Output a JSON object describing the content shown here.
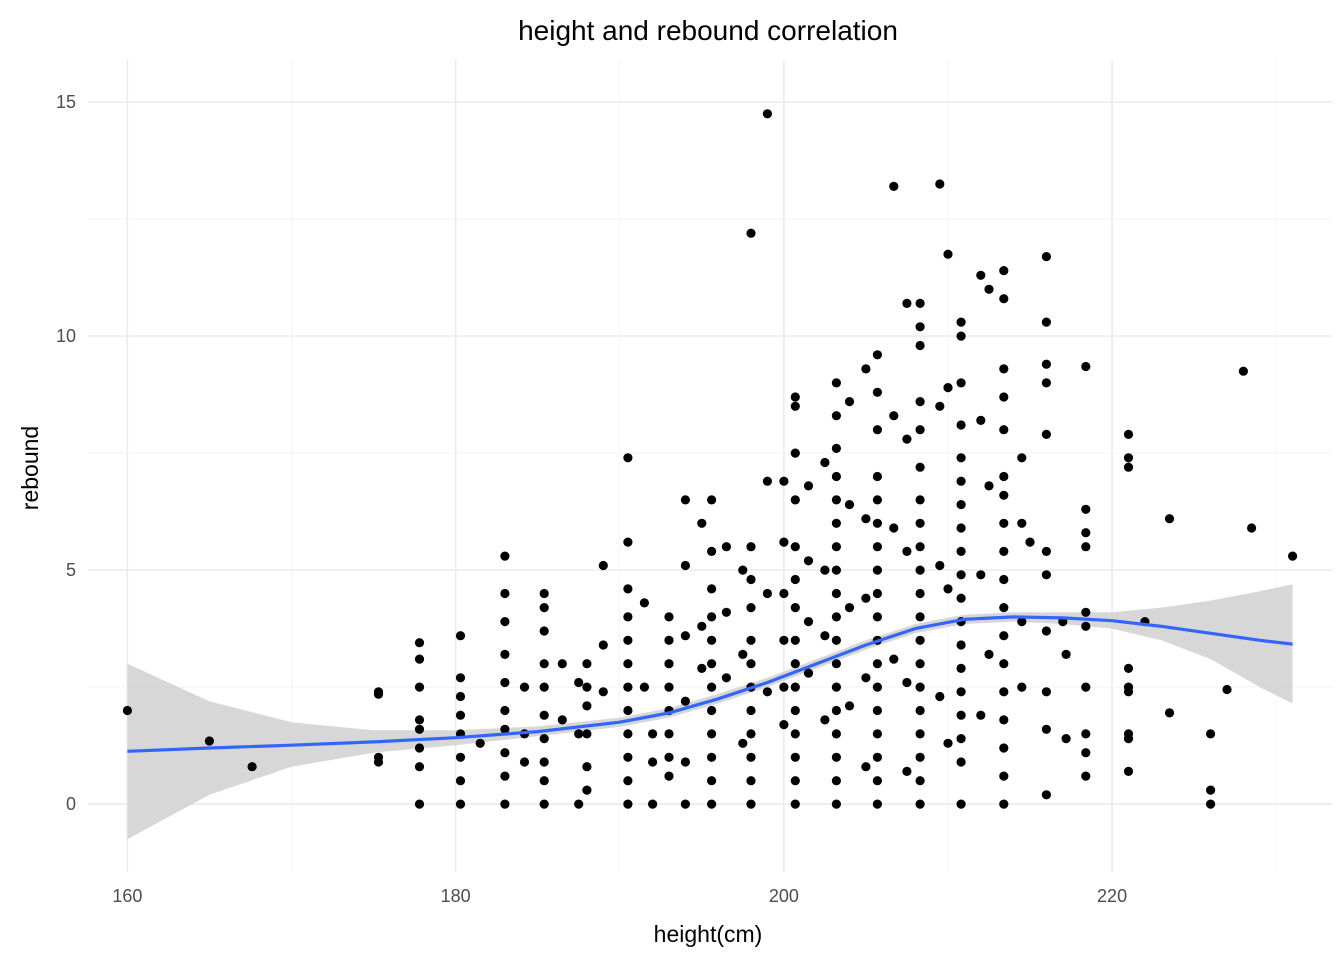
{
  "chart_data": {
    "type": "scatter",
    "title": "height and rebound correlation",
    "xlabel": "height(cm)",
    "ylabel": "rebound",
    "xlim": [
      157.6,
      233.4
    ],
    "ylim": [
      -1.45,
      15.9
    ],
    "x_ticks": [
      160,
      180,
      200,
      220
    ],
    "y_ticks": [
      0,
      5,
      10,
      15
    ],
    "x_tick_labels": [
      "160",
      "180",
      "200",
      "220"
    ],
    "y_tick_labels": [
      "0",
      "5",
      "10",
      "15"
    ],
    "grid": true,
    "legend": "none",
    "colors": {
      "points": "#000000",
      "smooth_line": "#3366ff",
      "confidence_band": "#d3d3d3",
      "grid": "#ebebeb"
    },
    "smooth": {
      "method": "loess",
      "x": [
        160,
        165,
        170,
        175,
        180,
        185,
        190,
        193,
        196,
        199,
        202,
        205,
        208,
        211,
        214,
        217,
        220,
        223,
        226,
        229,
        231
      ],
      "y": [
        1.13,
        1.2,
        1.26,
        1.33,
        1.42,
        1.55,
        1.75,
        1.95,
        2.25,
        2.6,
        3.0,
        3.4,
        3.75,
        3.95,
        4.0,
        3.98,
        3.92,
        3.8,
        3.65,
        3.5,
        3.42
      ],
      "lower": [
        -0.75,
        0.2,
        0.8,
        1.1,
        1.26,
        1.45,
        1.65,
        1.85,
        2.15,
        2.5,
        2.9,
        3.3,
        3.65,
        3.85,
        3.9,
        3.85,
        3.75,
        3.5,
        3.1,
        2.5,
        2.15
      ],
      "upper": [
        3.0,
        2.2,
        1.75,
        1.58,
        1.58,
        1.66,
        1.85,
        2.05,
        2.36,
        2.7,
        3.1,
        3.5,
        3.85,
        4.05,
        4.1,
        4.1,
        4.1,
        4.2,
        4.35,
        4.55,
        4.7
      ]
    },
    "points": [
      [
        160,
        2.0
      ],
      [
        165,
        1.35
      ],
      [
        167.6,
        0.8
      ],
      [
        175.3,
        2.4
      ],
      [
        175.3,
        2.35
      ],
      [
        175.3,
        1.0
      ],
      [
        175.3,
        0.9
      ],
      [
        177.8,
        3.45
      ],
      [
        177.8,
        3.1
      ],
      [
        177.8,
        2.5
      ],
      [
        177.8,
        1.8
      ],
      [
        177.8,
        1.6
      ],
      [
        177.8,
        1.2
      ],
      [
        177.8,
        0.8
      ],
      [
        177.8,
        0.0
      ],
      [
        180.3,
        3.6
      ],
      [
        180.3,
        2.7
      ],
      [
        180.3,
        2.3
      ],
      [
        180.3,
        1.9
      ],
      [
        180.3,
        1.5
      ],
      [
        180.3,
        1.0
      ],
      [
        180.3,
        0.5
      ],
      [
        180.3,
        0.0
      ],
      [
        181.5,
        1.3
      ],
      [
        183,
        5.3
      ],
      [
        183,
        4.5
      ],
      [
        183,
        3.9
      ],
      [
        183,
        3.2
      ],
      [
        183,
        2.6
      ],
      [
        183,
        2.0
      ],
      [
        183,
        1.6
      ],
      [
        183,
        1.1
      ],
      [
        183,
        0.6
      ],
      [
        183,
        0.0
      ],
      [
        184.2,
        2.5
      ],
      [
        184.2,
        1.5
      ],
      [
        184.2,
        0.9
      ],
      [
        185.4,
        4.5
      ],
      [
        185.4,
        4.2
      ],
      [
        185.4,
        3.7
      ],
      [
        185.4,
        3.0
      ],
      [
        185.4,
        2.5
      ],
      [
        185.4,
        1.9
      ],
      [
        185.4,
        1.4
      ],
      [
        185.4,
        0.9
      ],
      [
        185.4,
        0.5
      ],
      [
        185.4,
        0.0
      ],
      [
        186.5,
        3.0
      ],
      [
        186.5,
        1.8
      ],
      [
        187.5,
        2.6
      ],
      [
        187.5,
        1.5
      ],
      [
        187.5,
        0.0
      ],
      [
        188,
        3.0
      ],
      [
        188,
        2.5
      ],
      [
        188,
        2.1
      ],
      [
        188,
        1.5
      ],
      [
        188,
        0.8
      ],
      [
        188,
        0.3
      ],
      [
        189,
        5.1
      ],
      [
        189,
        3.4
      ],
      [
        189,
        2.4
      ],
      [
        190.5,
        7.4
      ],
      [
        190.5,
        5.6
      ],
      [
        190.5,
        4.6
      ],
      [
        190.5,
        4.0
      ],
      [
        190.5,
        3.5
      ],
      [
        190.5,
        3.0
      ],
      [
        190.5,
        2.5
      ],
      [
        190.5,
        2.0
      ],
      [
        190.5,
        1.5
      ],
      [
        190.5,
        1.0
      ],
      [
        190.5,
        0.5
      ],
      [
        190.5,
        0.0
      ],
      [
        191.5,
        4.3
      ],
      [
        191.5,
        2.5
      ],
      [
        192,
        1.5
      ],
      [
        192,
        0.9
      ],
      [
        192,
        0.0
      ],
      [
        193,
        4.0
      ],
      [
        193,
        3.5
      ],
      [
        193,
        3.0
      ],
      [
        193,
        2.5
      ],
      [
        193,
        2.0
      ],
      [
        193,
        1.5
      ],
      [
        193,
        1.0
      ],
      [
        193,
        0.6
      ],
      [
        194,
        6.5
      ],
      [
        194,
        5.1
      ],
      [
        194,
        3.6
      ],
      [
        194,
        2.2
      ],
      [
        194,
        0.9
      ],
      [
        194,
        0.0
      ],
      [
        195,
        6.0
      ],
      [
        195,
        3.8
      ],
      [
        195,
        2.9
      ],
      [
        195.6,
        6.5
      ],
      [
        195.6,
        5.4
      ],
      [
        195.6,
        4.6
      ],
      [
        195.6,
        4.0
      ],
      [
        195.6,
        3.5
      ],
      [
        195.6,
        3.0
      ],
      [
        195.6,
        2.5
      ],
      [
        195.6,
        2.0
      ],
      [
        195.6,
        1.5
      ],
      [
        195.6,
        1.0
      ],
      [
        195.6,
        0.5
      ],
      [
        195.6,
        0.0
      ],
      [
        196.5,
        5.5
      ],
      [
        196.5,
        4.1
      ],
      [
        196.5,
        2.7
      ],
      [
        197.5,
        5.0
      ],
      [
        197.5,
        3.2
      ],
      [
        197.5,
        1.3
      ],
      [
        198,
        12.2
      ],
      [
        198,
        5.5
      ],
      [
        198,
        4.8
      ],
      [
        198,
        4.2
      ],
      [
        198,
        3.5
      ],
      [
        198,
        3.0
      ],
      [
        198,
        2.5
      ],
      [
        198,
        2.0
      ],
      [
        198,
        1.5
      ],
      [
        198,
        1.0
      ],
      [
        198,
        0.5
      ],
      [
        198,
        0.0
      ],
      [
        199,
        14.75
      ],
      [
        199,
        6.9
      ],
      [
        199,
        4.5
      ],
      [
        199,
        2.4
      ],
      [
        200,
        6.9
      ],
      [
        200,
        5.6
      ],
      [
        200,
        4.5
      ],
      [
        200,
        3.5
      ],
      [
        200,
        2.5
      ],
      [
        200,
        1.7
      ],
      [
        200.7,
        8.7
      ],
      [
        200.7,
        8.5
      ],
      [
        200.7,
        7.5
      ],
      [
        200.7,
        6.5
      ],
      [
        200.7,
        5.5
      ],
      [
        200.7,
        4.8
      ],
      [
        200.7,
        4.2
      ],
      [
        200.7,
        3.5
      ],
      [
        200.7,
        3.0
      ],
      [
        200.7,
        2.5
      ],
      [
        200.7,
        2.0
      ],
      [
        200.7,
        1.5
      ],
      [
        200.7,
        1.0
      ],
      [
        200.7,
        0.5
      ],
      [
        200.7,
        0.0
      ],
      [
        201.5,
        6.8
      ],
      [
        201.5,
        5.2
      ],
      [
        201.5,
        3.9
      ],
      [
        201.5,
        2.8
      ],
      [
        202.5,
        7.3
      ],
      [
        202.5,
        5.0
      ],
      [
        202.5,
        3.6
      ],
      [
        202.5,
        1.8
      ],
      [
        203.2,
        9.0
      ],
      [
        203.2,
        8.3
      ],
      [
        203.2,
        7.6
      ],
      [
        203.2,
        7.0
      ],
      [
        203.2,
        6.5
      ],
      [
        203.2,
        6.0
      ],
      [
        203.2,
        5.5
      ],
      [
        203.2,
        5.0
      ],
      [
        203.2,
        4.5
      ],
      [
        203.2,
        4.0
      ],
      [
        203.2,
        3.5
      ],
      [
        203.2,
        3.0
      ],
      [
        203.2,
        2.5
      ],
      [
        203.2,
        2.0
      ],
      [
        203.2,
        1.5
      ],
      [
        203.2,
        1.0
      ],
      [
        203.2,
        0.5
      ],
      [
        203.2,
        0.0
      ],
      [
        204,
        8.6
      ],
      [
        204,
        6.4
      ],
      [
        204,
        4.2
      ],
      [
        204,
        2.1
      ],
      [
        205,
        9.3
      ],
      [
        205,
        6.1
      ],
      [
        205,
        4.4
      ],
      [
        205,
        2.7
      ],
      [
        205,
        0.8
      ],
      [
        205.7,
        9.6
      ],
      [
        205.7,
        8.8
      ],
      [
        205.7,
        8.0
      ],
      [
        205.7,
        7.0
      ],
      [
        205.7,
        6.5
      ],
      [
        205.7,
        6.0
      ],
      [
        205.7,
        5.5
      ],
      [
        205.7,
        5.0
      ],
      [
        205.7,
        4.5
      ],
      [
        205.7,
        4.0
      ],
      [
        205.7,
        3.5
      ],
      [
        205.7,
        3.0
      ],
      [
        205.7,
        2.5
      ],
      [
        205.7,
        2.0
      ],
      [
        205.7,
        1.5
      ],
      [
        205.7,
        1.0
      ],
      [
        205.7,
        0.5
      ],
      [
        205.7,
        0.0
      ],
      [
        206.7,
        13.2
      ],
      [
        206.7,
        8.3
      ],
      [
        206.7,
        5.9
      ],
      [
        206.7,
        3.1
      ],
      [
        207.5,
        10.7
      ],
      [
        207.5,
        7.8
      ],
      [
        207.5,
        5.4
      ],
      [
        207.5,
        2.6
      ],
      [
        207.5,
        0.7
      ],
      [
        208.3,
        10.7
      ],
      [
        208.3,
        10.2
      ],
      [
        208.3,
        9.8
      ],
      [
        208.3,
        8.6
      ],
      [
        208.3,
        8.0
      ],
      [
        208.3,
        7.2
      ],
      [
        208.3,
        6.5
      ],
      [
        208.3,
        6.0
      ],
      [
        208.3,
        5.5
      ],
      [
        208.3,
        5.0
      ],
      [
        208.3,
        4.5
      ],
      [
        208.3,
        4.0
      ],
      [
        208.3,
        3.5
      ],
      [
        208.3,
        3.0
      ],
      [
        208.3,
        2.5
      ],
      [
        208.3,
        2.0
      ],
      [
        208.3,
        1.5
      ],
      [
        208.3,
        1.0
      ],
      [
        208.3,
        0.5
      ],
      [
        208.3,
        0.0
      ],
      [
        209.5,
        13.25
      ],
      [
        209.5,
        8.5
      ],
      [
        209.5,
        5.1
      ],
      [
        209.5,
        2.3
      ],
      [
        210,
        11.75
      ],
      [
        210,
        8.9
      ],
      [
        210,
        4.6
      ],
      [
        210,
        1.3
      ],
      [
        210.8,
        10.3
      ],
      [
        210.8,
        10.0
      ],
      [
        210.8,
        9.0
      ],
      [
        210.8,
        8.1
      ],
      [
        210.8,
        7.4
      ],
      [
        210.8,
        6.9
      ],
      [
        210.8,
        6.4
      ],
      [
        210.8,
        5.9
      ],
      [
        210.8,
        5.4
      ],
      [
        210.8,
        4.9
      ],
      [
        210.8,
        4.4
      ],
      [
        210.8,
        3.9
      ],
      [
        210.8,
        3.4
      ],
      [
        210.8,
        2.9
      ],
      [
        210.8,
        2.4
      ],
      [
        210.8,
        1.9
      ],
      [
        210.8,
        1.4
      ],
      [
        210.8,
        0.9
      ],
      [
        210.8,
        0.0
      ],
      [
        212,
        11.3
      ],
      [
        212,
        8.2
      ],
      [
        212,
        4.9
      ],
      [
        212,
        1.9
      ],
      [
        212.5,
        11.0
      ],
      [
        212.5,
        6.8
      ],
      [
        212.5,
        3.2
      ],
      [
        213.4,
        11.4
      ],
      [
        213.4,
        10.8
      ],
      [
        213.4,
        9.3
      ],
      [
        213.4,
        8.7
      ],
      [
        213.4,
        8.0
      ],
      [
        213.4,
        7.0
      ],
      [
        213.4,
        6.6
      ],
      [
        213.4,
        6.0
      ],
      [
        213.4,
        5.4
      ],
      [
        213.4,
        4.8
      ],
      [
        213.4,
        4.2
      ],
      [
        213.4,
        3.6
      ],
      [
        213.4,
        3.0
      ],
      [
        213.4,
        2.4
      ],
      [
        213.4,
        1.8
      ],
      [
        213.4,
        1.2
      ],
      [
        213.4,
        0.6
      ],
      [
        213.4,
        0.0
      ],
      [
        214.5,
        7.4
      ],
      [
        214.5,
        6.0
      ],
      [
        214.5,
        3.9
      ],
      [
        214.5,
        2.5
      ],
      [
        215,
        5.6
      ],
      [
        216,
        11.7
      ],
      [
        216,
        10.3
      ],
      [
        216,
        9.4
      ],
      [
        216,
        9.0
      ],
      [
        216,
        7.9
      ],
      [
        216,
        5.4
      ],
      [
        216,
        4.9
      ],
      [
        216,
        3.7
      ],
      [
        216,
        2.4
      ],
      [
        216,
        1.6
      ],
      [
        216,
        0.2
      ],
      [
        217,
        3.9
      ],
      [
        217.2,
        3.2
      ],
      [
        217.2,
        1.4
      ],
      [
        218.4,
        9.35
      ],
      [
        218.4,
        6.3
      ],
      [
        218.4,
        5.8
      ],
      [
        218.4,
        5.5
      ],
      [
        218.4,
        4.1
      ],
      [
        218.4,
        3.8
      ],
      [
        218.4,
        2.5
      ],
      [
        218.4,
        1.5
      ],
      [
        218.4,
        1.1
      ],
      [
        218.4,
        0.6
      ],
      [
        221,
        7.9
      ],
      [
        221,
        7.4
      ],
      [
        221,
        7.2
      ],
      [
        221,
        2.9
      ],
      [
        221,
        2.5
      ],
      [
        221,
        2.4
      ],
      [
        221,
        1.5
      ],
      [
        221,
        1.4
      ],
      [
        221,
        0.7
      ],
      [
        222,
        3.9
      ],
      [
        223.5,
        6.1
      ],
      [
        223.5,
        1.95
      ],
      [
        226,
        1.5
      ],
      [
        226,
        0.3
      ],
      [
        226,
        0.0
      ],
      [
        227,
        2.45
      ],
      [
        228,
        9.25
      ],
      [
        228.5,
        5.9
      ],
      [
        231,
        5.3
      ]
    ]
  }
}
